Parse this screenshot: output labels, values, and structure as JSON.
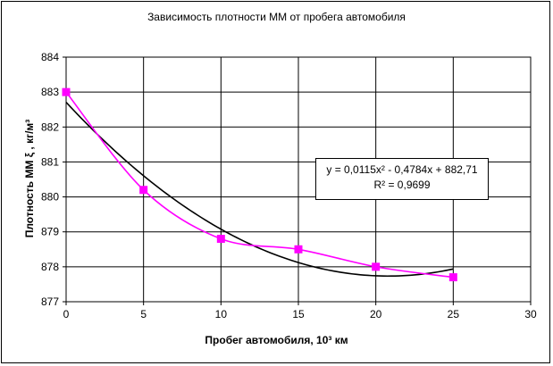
{
  "chart_data": {
    "type": "scatter",
    "title": "Зависимость плотности ММ от пробега автомобиля",
    "xlabel": "Пробег автомобиля, 10³ км",
    "ylabel": "Плотность ММ  ξ , кг/м³",
    "xlim": [
      0,
      30
    ],
    "ylim": [
      877,
      884
    ],
    "xticks": [
      0,
      5,
      10,
      15,
      20,
      25,
      30
    ],
    "yticks": [
      877,
      878,
      879,
      880,
      881,
      882,
      883,
      884
    ],
    "grid": true,
    "series": [
      {
        "x": [
          0,
          5,
          10,
          15,
          20,
          25
        ],
        "y": [
          883.0,
          880.2,
          878.8,
          878.5,
          878.0,
          877.7
        ],
        "color": "#ff00ff",
        "marker": "square",
        "line": "smooth"
      }
    ],
    "trendline": {
      "type": "polynomial",
      "coefficients": [
        0.0115,
        -0.4784,
        882.71
      ],
      "x_range": [
        0,
        25
      ],
      "color": "#000000"
    },
    "annotation": {
      "equation": "y = 0,0115x² - 0,4784x + 882,71",
      "r2": "R² = 0,9699"
    }
  }
}
